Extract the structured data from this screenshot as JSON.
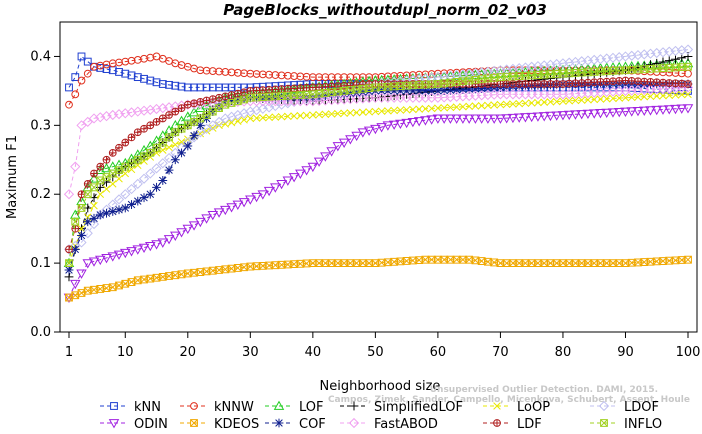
{
  "chart_data": {
    "type": "line",
    "title": "PageBlocks_withoutdupl_norm_02_v03",
    "xlabel": "Neighborhood size",
    "ylabel": "Maximum F1",
    "xlim": [
      1,
      100
    ],
    "ylim": [
      0.0,
      0.45
    ],
    "xticks": [
      1,
      10,
      20,
      30,
      40,
      50,
      60,
      70,
      80,
      90,
      100
    ],
    "yticks": [
      0.0,
      0.1,
      0.2,
      0.3,
      0.4
    ],
    "ytick_labels": [
      "0.0",
      "0.1",
      "0.2",
      "0.3",
      "0.4"
    ],
    "grid": false,
    "legend_position": "bottom",
    "series": [
      {
        "name": "kNN",
        "color": "#1f3fd0",
        "marker": "square",
        "points": [
          [
            1,
            0.355
          ],
          [
            2,
            0.37
          ],
          [
            3,
            0.4
          ],
          [
            5,
            0.385
          ],
          [
            8,
            0.38
          ],
          [
            12,
            0.37
          ],
          [
            16,
            0.36
          ],
          [
            20,
            0.355
          ],
          [
            30,
            0.355
          ],
          [
            40,
            0.36
          ],
          [
            50,
            0.36
          ],
          [
            60,
            0.355
          ],
          [
            70,
            0.355
          ],
          [
            80,
            0.355
          ],
          [
            90,
            0.355
          ],
          [
            100,
            0.35
          ]
        ]
      },
      {
        "name": "kNNW",
        "color": "#e0301e",
        "marker": "circle",
        "points": [
          [
            1,
            0.33
          ],
          [
            2,
            0.345
          ],
          [
            3,
            0.365
          ],
          [
            5,
            0.385
          ],
          [
            8,
            0.39
          ],
          [
            12,
            0.395
          ],
          [
            15,
            0.4
          ],
          [
            18,
            0.39
          ],
          [
            22,
            0.38
          ],
          [
            30,
            0.375
          ],
          [
            40,
            0.37
          ],
          [
            50,
            0.37
          ],
          [
            60,
            0.375
          ],
          [
            70,
            0.38
          ],
          [
            80,
            0.38
          ],
          [
            90,
            0.38
          ],
          [
            100,
            0.375
          ]
        ]
      },
      {
        "name": "LOF",
        "color": "#22cc22",
        "marker": "triangle-up",
        "points": [
          [
            1,
            0.1
          ],
          [
            2,
            0.17
          ],
          [
            4,
            0.21
          ],
          [
            6,
            0.235
          ],
          [
            10,
            0.245
          ],
          [
            14,
            0.27
          ],
          [
            18,
            0.3
          ],
          [
            22,
            0.325
          ],
          [
            26,
            0.34
          ],
          [
            30,
            0.345
          ],
          [
            40,
            0.355
          ],
          [
            50,
            0.365
          ],
          [
            60,
            0.37
          ],
          [
            70,
            0.375
          ],
          [
            80,
            0.38
          ],
          [
            90,
            0.385
          ],
          [
            100,
            0.39
          ]
        ]
      },
      {
        "name": "SimplifiedLOF",
        "color": "#000000",
        "marker": "plus",
        "points": [
          [
            1,
            0.08
          ],
          [
            2,
            0.12
          ],
          [
            4,
            0.18
          ],
          [
            6,
            0.21
          ],
          [
            10,
            0.24
          ],
          [
            14,
            0.26
          ],
          [
            18,
            0.29
          ],
          [
            22,
            0.31
          ],
          [
            26,
            0.335
          ],
          [
            30,
            0.34
          ],
          [
            40,
            0.335
          ],
          [
            50,
            0.34
          ],
          [
            60,
            0.35
          ],
          [
            70,
            0.36
          ],
          [
            80,
            0.37
          ],
          [
            90,
            0.38
          ],
          [
            100,
            0.4
          ]
        ]
      },
      {
        "name": "LoOP",
        "color": "#e8e800",
        "marker": "x",
        "points": [
          [
            1,
            0.1
          ],
          [
            3,
            0.15
          ],
          [
            6,
            0.2
          ],
          [
            10,
            0.23
          ],
          [
            15,
            0.26
          ],
          [
            20,
            0.28
          ],
          [
            25,
            0.3
          ],
          [
            30,
            0.31
          ],
          [
            40,
            0.315
          ],
          [
            50,
            0.32
          ],
          [
            60,
            0.325
          ],
          [
            70,
            0.33
          ],
          [
            80,
            0.335
          ],
          [
            90,
            0.34
          ],
          [
            100,
            0.345
          ]
        ]
      },
      {
        "name": "LDOF",
        "color": "#c0c0f0",
        "marker": "diamond",
        "points": [
          [
            1,
            0.12
          ],
          [
            3,
            0.13
          ],
          [
            6,
            0.17
          ],
          [
            10,
            0.2
          ],
          [
            14,
            0.23
          ],
          [
            18,
            0.26
          ],
          [
            22,
            0.29
          ],
          [
            26,
            0.31
          ],
          [
            30,
            0.32
          ],
          [
            40,
            0.34
          ],
          [
            50,
            0.36
          ],
          [
            60,
            0.37
          ],
          [
            70,
            0.38
          ],
          [
            80,
            0.39
          ],
          [
            90,
            0.4
          ],
          [
            100,
            0.41
          ]
        ]
      },
      {
        "name": "ODIN",
        "color": "#a020e0",
        "marker": "triangle-down",
        "points": [
          [
            1,
            0.05
          ],
          [
            2,
            0.07
          ],
          [
            4,
            0.1
          ],
          [
            8,
            0.11
          ],
          [
            12,
            0.12
          ],
          [
            16,
            0.13
          ],
          [
            20,
            0.15
          ],
          [
            24,
            0.17
          ],
          [
            28,
            0.185
          ],
          [
            32,
            0.2
          ],
          [
            36,
            0.22
          ],
          [
            40,
            0.24
          ],
          [
            44,
            0.27
          ],
          [
            48,
            0.29
          ],
          [
            52,
            0.3
          ],
          [
            56,
            0.305
          ],
          [
            60,
            0.31
          ],
          [
            70,
            0.31
          ],
          [
            80,
            0.315
          ],
          [
            90,
            0.32
          ],
          [
            100,
            0.325
          ]
        ]
      },
      {
        "name": "KDEOS",
        "color": "#f0a800",
        "marker": "square-x",
        "points": [
          [
            1,
            0.05
          ],
          [
            4,
            0.06
          ],
          [
            8,
            0.065
          ],
          [
            12,
            0.075
          ],
          [
            16,
            0.08
          ],
          [
            20,
            0.085
          ],
          [
            25,
            0.09
          ],
          [
            30,
            0.095
          ],
          [
            40,
            0.1
          ],
          [
            50,
            0.1
          ],
          [
            58,
            0.105
          ],
          [
            65,
            0.105
          ],
          [
            70,
            0.1
          ],
          [
            80,
            0.1
          ],
          [
            90,
            0.1
          ],
          [
            100,
            0.105
          ]
        ]
      },
      {
        "name": "COF",
        "color": "#10208f",
        "marker": "asterisk",
        "points": [
          [
            1,
            0.09
          ],
          [
            2,
            0.12
          ],
          [
            4,
            0.16
          ],
          [
            6,
            0.17
          ],
          [
            10,
            0.18
          ],
          [
            14,
            0.2
          ],
          [
            16,
            0.22
          ],
          [
            18,
            0.25
          ],
          [
            20,
            0.27
          ],
          [
            22,
            0.3
          ],
          [
            24,
            0.32
          ],
          [
            26,
            0.335
          ],
          [
            30,
            0.34
          ],
          [
            40,
            0.34
          ],
          [
            50,
            0.35
          ],
          [
            60,
            0.35
          ],
          [
            70,
            0.355
          ],
          [
            80,
            0.36
          ],
          [
            90,
            0.36
          ],
          [
            100,
            0.36
          ]
        ]
      },
      {
        "name": "FastABOD",
        "color": "#f0a0f0",
        "marker": "diamond",
        "points": [
          [
            1,
            0.2
          ],
          [
            2,
            0.24
          ],
          [
            3,
            0.3
          ],
          [
            5,
            0.31
          ],
          [
            8,
            0.315
          ],
          [
            12,
            0.32
          ],
          [
            16,
            0.325
          ],
          [
            20,
            0.33
          ],
          [
            30,
            0.335
          ],
          [
            40,
            0.335
          ],
          [
            50,
            0.34
          ],
          [
            60,
            0.34
          ],
          [
            70,
            0.345
          ],
          [
            80,
            0.345
          ],
          [
            90,
            0.35
          ],
          [
            100,
            0.355
          ]
        ]
      },
      {
        "name": "LDF",
        "color": "#b02020",
        "marker": "circle-plus",
        "points": [
          [
            1,
            0.12
          ],
          [
            2,
            0.15
          ],
          [
            3,
            0.2
          ],
          [
            5,
            0.23
          ],
          [
            8,
            0.26
          ],
          [
            12,
            0.29
          ],
          [
            16,
            0.31
          ],
          [
            20,
            0.33
          ],
          [
            25,
            0.34
          ],
          [
            30,
            0.35
          ],
          [
            40,
            0.355
          ],
          [
            50,
            0.36
          ],
          [
            60,
            0.36
          ],
          [
            70,
            0.36
          ],
          [
            80,
            0.36
          ],
          [
            90,
            0.365
          ],
          [
            100,
            0.36
          ]
        ]
      },
      {
        "name": "INFLO",
        "color": "#a0d020",
        "marker": "square-x",
        "points": [
          [
            1,
            0.1
          ],
          [
            2,
            0.16
          ],
          [
            4,
            0.2
          ],
          [
            6,
            0.22
          ],
          [
            10,
            0.24
          ],
          [
            14,
            0.26
          ],
          [
            18,
            0.29
          ],
          [
            22,
            0.31
          ],
          [
            26,
            0.33
          ],
          [
            30,
            0.34
          ],
          [
            40,
            0.345
          ],
          [
            50,
            0.355
          ],
          [
            60,
            0.36
          ],
          [
            70,
            0.37
          ],
          [
            80,
            0.375
          ],
          [
            90,
            0.38
          ],
          [
            100,
            0.385
          ]
        ]
      }
    ],
    "legend_rows": [
      [
        "kNN",
        "kNNW",
        "LOF",
        "SimplifiedLOF",
        "LoOP",
        "LDOF"
      ],
      [
        "ODIN",
        "KDEOS",
        "COF",
        "FastABOD",
        "LDF",
        "INFLO"
      ]
    ],
    "watermark": [
      "Unsupervised Outlier Detection. DAMI, 2015.",
      "Campos, Zimek, Sander, Campello, Micenkova, Schubert, Assent, Houle"
    ]
  }
}
